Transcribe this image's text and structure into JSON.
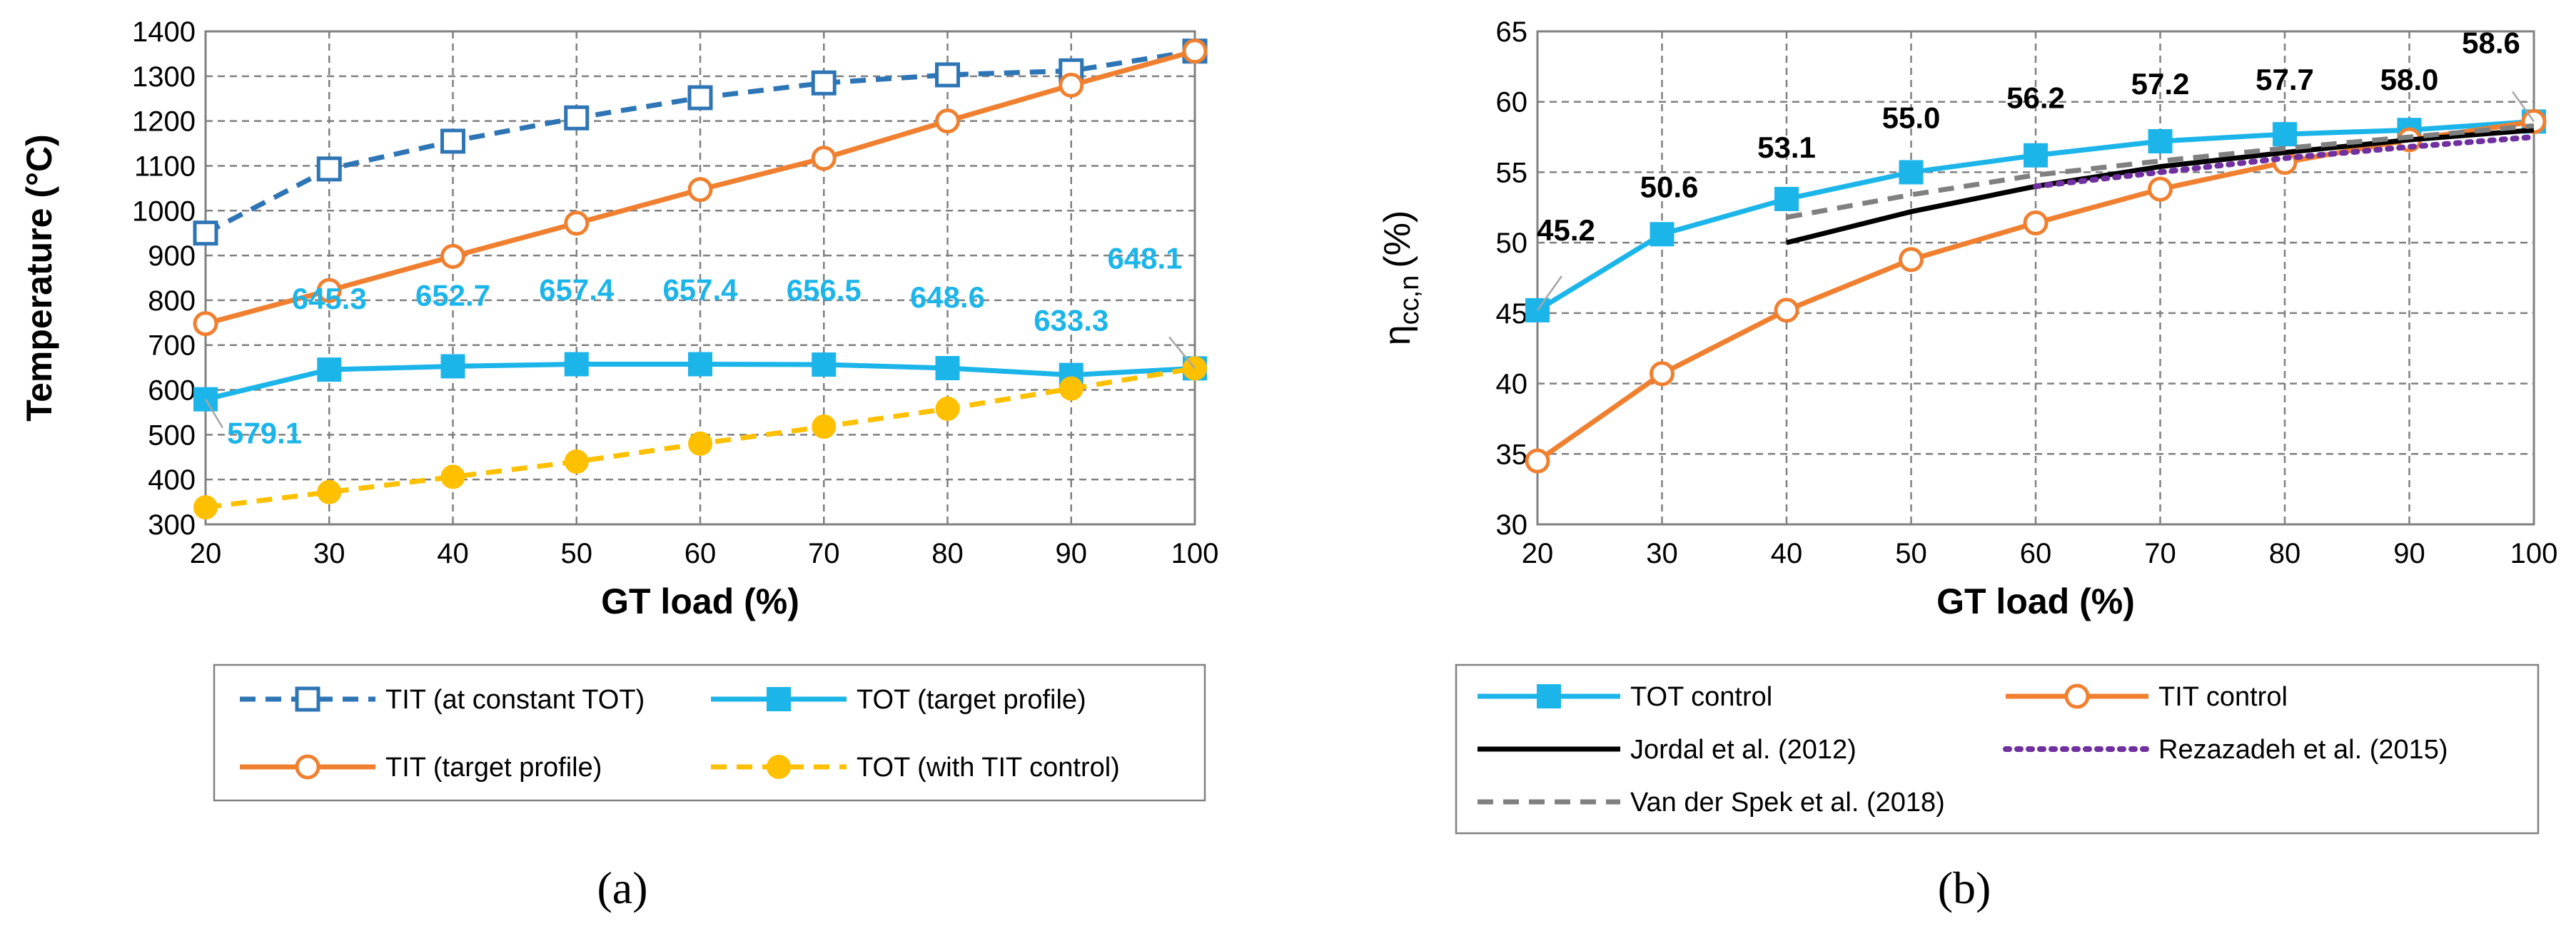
{
  "chart_data": [
    {
      "type": "line",
      "panel_label": "(a)",
      "xlabel": "GT load (%)",
      "ylabel": "Temperature (°C)",
      "xlim": [
        20,
        100
      ],
      "ylim": [
        300,
        1400
      ],
      "xticks": [
        20,
        30,
        40,
        50,
        60,
        70,
        80,
        90,
        100
      ],
      "yticks": [
        300,
        400,
        500,
        600,
        700,
        800,
        900,
        1000,
        1100,
        1200,
        1300,
        1400
      ],
      "grid": true,
      "legend_position": "bottom",
      "series": [
        {
          "name": "TIT (at constant TOT)",
          "color": "#2E75B6",
          "dash": "dashed",
          "marker": "square-open",
          "x": [
            20,
            30,
            40,
            50,
            60,
            70,
            80,
            90,
            100
          ],
          "y": [
            950,
            1093,
            1155,
            1207,
            1252,
            1285,
            1303,
            1312,
            1356
          ]
        },
        {
          "name": "TOT (target profile)",
          "color": "#1CB5EA",
          "dash": "solid",
          "marker": "square-filled",
          "x": [
            20,
            30,
            40,
            50,
            60,
            70,
            80,
            90,
            100
          ],
          "y": [
            579.1,
            645.3,
            652.7,
            657.4,
            657.4,
            656.5,
            648.6,
            633.3,
            648.1
          ],
          "data_labels": [
            "579.1",
            "645.3",
            "652.7",
            "657.4",
            "657.4",
            "656.5",
            "648.6",
            "633.3",
            "648.1"
          ]
        },
        {
          "name": "TIT (target profile)",
          "color": "#F08030",
          "dash": "solid",
          "marker": "circle-open",
          "x": [
            20,
            30,
            40,
            50,
            60,
            70,
            80,
            90,
            100
          ],
          "y": [
            748,
            822,
            898,
            972,
            1047,
            1117,
            1200,
            1280,
            1356
          ]
        },
        {
          "name": "TOT (with TIT control)",
          "color": "#FFC000",
          "dash": "dashed",
          "marker": "circle-filled",
          "x": [
            20,
            30,
            40,
            50,
            60,
            70,
            80,
            90,
            100
          ],
          "y": [
            338,
            372,
            406,
            440,
            480,
            518,
            558,
            603,
            648
          ]
        }
      ]
    },
    {
      "type": "line",
      "panel_label": "(b)",
      "xlabel": "GT load (%)",
      "ylabel_main": "η",
      "ylabel_sub": "cc,n",
      "ylabel_unit": "(%)",
      "xlim": [
        20,
        100
      ],
      "ylim": [
        30,
        65
      ],
      "xticks": [
        20,
        30,
        40,
        50,
        60,
        70,
        80,
        90,
        100
      ],
      "yticks": [
        30,
        35,
        40,
        45,
        50,
        55,
        60,
        65
      ],
      "grid": true,
      "legend_position": "bottom",
      "series": [
        {
          "name": "TOT control",
          "color": "#1CB5EA",
          "dash": "solid",
          "marker": "square-filled",
          "x": [
            20,
            30,
            40,
            50,
            60,
            70,
            80,
            90,
            100
          ],
          "y": [
            45.2,
            50.6,
            53.1,
            55.0,
            56.2,
            57.2,
            57.7,
            58.0,
            58.6
          ],
          "data_labels": [
            "45.2",
            "50.6",
            "53.1",
            "55.0",
            "56.2",
            "57.2",
            "57.7",
            "58.0",
            "58.6"
          ]
        },
        {
          "name": "TIT control",
          "color": "#F08030",
          "dash": "solid",
          "marker": "circle-open",
          "x": [
            20,
            30,
            40,
            50,
            60,
            70,
            80,
            90,
            100
          ],
          "y": [
            34.5,
            40.7,
            45.2,
            48.8,
            51.4,
            53.8,
            55.7,
            57.3,
            58.6
          ]
        },
        {
          "name": "Jordal et al. (2012)",
          "color": "#000000",
          "dash": "solid",
          "marker": "none",
          "x": [
            40,
            50,
            60,
            70,
            80,
            90,
            100
          ],
          "y": [
            50.0,
            52.2,
            54.0,
            55.4,
            56.4,
            57.3,
            58.0
          ]
        },
        {
          "name": "Rezazadeh et al. (2015)",
          "color": "#7030A0",
          "dash": "dotted",
          "marker": "none",
          "x": [
            60,
            70,
            80,
            90,
            100
          ],
          "y": [
            54.0,
            55.0,
            56.0,
            56.8,
            57.5
          ]
        },
        {
          "name": "Van der Spek et al. (2018)",
          "color": "#808080",
          "dash": "dashed",
          "marker": "none",
          "x": [
            40,
            50,
            60,
            70,
            80,
            90,
            100
          ],
          "y": [
            51.8,
            53.4,
            54.8,
            55.8,
            56.7,
            57.5,
            58.3
          ]
        }
      ]
    }
  ]
}
